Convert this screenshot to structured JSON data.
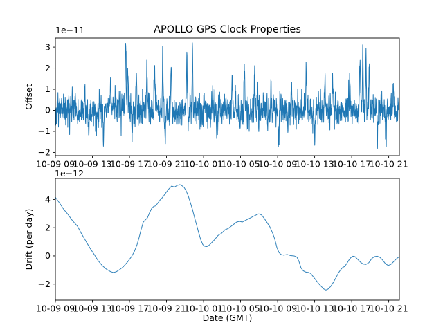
{
  "figure": {
    "background": "#ffffff",
    "line_color": "#1f77b4",
    "text_color": "#000000"
  },
  "chart_data": [
    {
      "type": "line",
      "title": "APOLLO GPS Clock Properties",
      "ylabel": "Offset",
      "y_offset_text": "1e−11",
      "unit_scale": "1e-11",
      "x_tick_labels": [
        "10-09 09",
        "10-09 13",
        "10-09 17",
        "10-09 21",
        "10-10 01",
        "10-10 05",
        "10-10 09",
        "10-10 13",
        "10-10 17",
        "10-10 21"
      ],
      "x_tick_hours": [
        0,
        4,
        8,
        12,
        16,
        20,
        24,
        28,
        32,
        36
      ],
      "xlim_hours": [
        0,
        37.15
      ],
      "yticks": [
        3,
        2,
        1,
        0,
        -1,
        -2
      ],
      "ytick_labels": [
        "3",
        "2",
        "1",
        "0",
        "−1",
        "−2"
      ],
      "ylim": [
        -2.15,
        3.43
      ],
      "grid": false,
      "legend": "none",
      "series_summary": {
        "description": "dense noisy clock-offset time series fluctuating about 0 (units 1e-11 s)",
        "mean": 0.0,
        "typical_band": [
          -0.9,
          0.9
        ],
        "max_spike": 3.2,
        "min_spike": -1.9
      },
      "spikes": [
        [
          3.6,
          -1.3
        ],
        [
          5.2,
          -1.45
        ],
        [
          5.95,
          1.55
        ],
        [
          7.6,
          3.2
        ],
        [
          7.78,
          2.0
        ],
        [
          8.3,
          -1.35
        ],
        [
          8.75,
          1.6
        ],
        [
          9.9,
          1.9
        ],
        [
          10.7,
          2.3
        ],
        [
          11.6,
          2.15
        ],
        [
          11.85,
          -1.6
        ],
        [
          12.5,
          2.05
        ],
        [
          14.2,
          2.6
        ],
        [
          14.8,
          2.45
        ],
        [
          17.0,
          1.3
        ],
        [
          17.45,
          -1.1
        ],
        [
          19.1,
          1.4
        ],
        [
          20.4,
          1.7
        ],
        [
          21.5,
          1.85
        ],
        [
          23.3,
          1.5
        ],
        [
          24.1,
          -1.55
        ],
        [
          25.5,
          1.4
        ],
        [
          27.1,
          1.9
        ],
        [
          28.0,
          -1.45
        ],
        [
          29.1,
          1.55
        ],
        [
          29.95,
          1.5
        ],
        [
          31.8,
          1.65
        ],
        [
          32.9,
          2.25
        ],
        [
          33.2,
          2.7
        ],
        [
          33.55,
          2.6
        ],
        [
          33.9,
          2.1
        ],
        [
          34.8,
          -1.25
        ],
        [
          35.7,
          -1.9
        ],
        [
          36.5,
          1.2
        ]
      ],
      "noise": {
        "seed": 11,
        "n": 2000,
        "std": 0.33,
        "ar": 0.35,
        "burst_prob": 0.1,
        "burst_scale": 0.85,
        "spike_width": 0.045
      },
      "clip": [
        -2.05,
        3.28
      ]
    },
    {
      "type": "line",
      "xlabel": "Date (GMT)",
      "ylabel": "Drift (per day)",
      "y_offset_text": "1e−12",
      "unit_scale": "1e-12",
      "x_tick_labels": [
        "10-09 09",
        "10-09 13",
        "10-09 17",
        "10-09 21",
        "10-10 01",
        "10-10 05",
        "10-10 09",
        "10-10 13",
        "10-10 17",
        "10-10 21"
      ],
      "x_tick_hours": [
        0,
        4,
        8,
        12,
        16,
        20,
        24,
        28,
        32,
        36
      ],
      "xlim_hours": [
        0,
        37.15
      ],
      "yticks": [
        4,
        2,
        0,
        -2
      ],
      "ytick_labels": [
        "4",
        "2",
        "0",
        "−2"
      ],
      "ylim": [
        -3.14,
        5.49
      ],
      "grid": false,
      "legend": "none",
      "points": [
        [
          0,
          4.15
        ],
        [
          0.45,
          3.75
        ],
        [
          0.9,
          3.3
        ],
        [
          1.35,
          2.95
        ],
        [
          1.79,
          2.55
        ],
        [
          2.09,
          2.32
        ],
        [
          2.39,
          2.1
        ],
        [
          2.84,
          1.55
        ],
        [
          3.29,
          1.05
        ],
        [
          3.74,
          0.55
        ],
        [
          4.19,
          0.1
        ],
        [
          4.63,
          -0.35
        ],
        [
          5.08,
          -0.7
        ],
        [
          5.53,
          -0.95
        ],
        [
          5.98,
          -1.12
        ],
        [
          6.28,
          -1.18
        ],
        [
          6.58,
          -1.12
        ],
        [
          6.88,
          -1.0
        ],
        [
          7.32,
          -0.78
        ],
        [
          7.77,
          -0.45
        ],
        [
          8.22,
          -0.05
        ],
        [
          8.52,
          0.3
        ],
        [
          8.82,
          0.8
        ],
        [
          9.04,
          1.3
        ],
        [
          9.27,
          1.9
        ],
        [
          9.49,
          2.4
        ],
        [
          9.72,
          2.55
        ],
        [
          9.94,
          2.7
        ],
        [
          10.16,
          3.05
        ],
        [
          10.39,
          3.35
        ],
        [
          10.61,
          3.5
        ],
        [
          10.84,
          3.55
        ],
        [
          11.06,
          3.75
        ],
        [
          11.29,
          3.95
        ],
        [
          11.51,
          4.1
        ],
        [
          11.74,
          4.3
        ],
        [
          11.96,
          4.5
        ],
        [
          12.26,
          4.75
        ],
        [
          12.56,
          4.95
        ],
        [
          12.86,
          4.88
        ],
        [
          13.16,
          5.0
        ],
        [
          13.45,
          5.05
        ],
        [
          13.68,
          4.97
        ],
        [
          13.9,
          4.85
        ],
        [
          14.13,
          4.6
        ],
        [
          14.35,
          4.25
        ],
        [
          14.57,
          3.8
        ],
        [
          14.8,
          3.3
        ],
        [
          15.02,
          2.75
        ],
        [
          15.25,
          2.2
        ],
        [
          15.47,
          1.65
        ],
        [
          15.7,
          1.15
        ],
        [
          15.92,
          0.8
        ],
        [
          16.14,
          0.68
        ],
        [
          16.37,
          0.66
        ],
        [
          16.59,
          0.75
        ],
        [
          16.89,
          0.95
        ],
        [
          17.19,
          1.15
        ],
        [
          17.56,
          1.45
        ],
        [
          17.94,
          1.6
        ],
        [
          18.31,
          1.85
        ],
        [
          18.68,
          1.95
        ],
        [
          18.98,
          2.1
        ],
        [
          19.28,
          2.25
        ],
        [
          19.58,
          2.4
        ],
        [
          19.88,
          2.45
        ],
        [
          20.18,
          2.4
        ],
        [
          20.48,
          2.5
        ],
        [
          20.78,
          2.6
        ],
        [
          21.08,
          2.7
        ],
        [
          21.38,
          2.8
        ],
        [
          21.68,
          2.9
        ],
        [
          21.97,
          2.98
        ],
        [
          22.27,
          2.9
        ],
        [
          22.57,
          2.65
        ],
        [
          22.87,
          2.35
        ],
        [
          23.17,
          2.05
        ],
        [
          23.47,
          1.6
        ],
        [
          23.69,
          1.2
        ],
        [
          23.92,
          0.6
        ],
        [
          24.14,
          0.25
        ],
        [
          24.36,
          0.1
        ],
        [
          24.66,
          0.05
        ],
        [
          25.04,
          0.1
        ],
        [
          25.41,
          0.02
        ],
        [
          25.78,
          0.0
        ],
        [
          26.08,
          -0.08
        ],
        [
          26.31,
          -0.4
        ],
        [
          26.53,
          -0.85
        ],
        [
          26.76,
          -1.05
        ],
        [
          27.06,
          -1.15
        ],
        [
          27.35,
          -1.17
        ],
        [
          27.58,
          -1.25
        ],
        [
          27.88,
          -1.5
        ],
        [
          28.18,
          -1.75
        ],
        [
          28.48,
          -2.0
        ],
        [
          28.77,
          -2.2
        ],
        [
          29.0,
          -2.35
        ],
        [
          29.22,
          -2.42
        ],
        [
          29.45,
          -2.35
        ],
        [
          29.75,
          -2.15
        ],
        [
          30.04,
          -1.85
        ],
        [
          30.34,
          -1.5
        ],
        [
          30.57,
          -1.2
        ],
        [
          30.79,
          -1.0
        ],
        [
          31.02,
          -0.82
        ],
        [
          31.24,
          -0.75
        ],
        [
          31.46,
          -0.55
        ],
        [
          31.69,
          -0.3
        ],
        [
          31.91,
          -0.12
        ],
        [
          32.13,
          -0.02
        ],
        [
          32.36,
          -0.05
        ],
        [
          32.66,
          -0.25
        ],
        [
          32.96,
          -0.45
        ],
        [
          33.25,
          -0.58
        ],
        [
          33.55,
          -0.6
        ],
        [
          33.85,
          -0.48
        ],
        [
          34.15,
          -0.2
        ],
        [
          34.45,
          -0.05
        ],
        [
          34.75,
          -0.02
        ],
        [
          35.05,
          -0.1
        ],
        [
          35.35,
          -0.3
        ],
        [
          35.64,
          -0.55
        ],
        [
          35.94,
          -0.68
        ],
        [
          36.24,
          -0.6
        ],
        [
          36.54,
          -0.4
        ],
        [
          36.84,
          -0.2
        ],
        [
          37.14,
          -0.05
        ]
      ]
    }
  ]
}
